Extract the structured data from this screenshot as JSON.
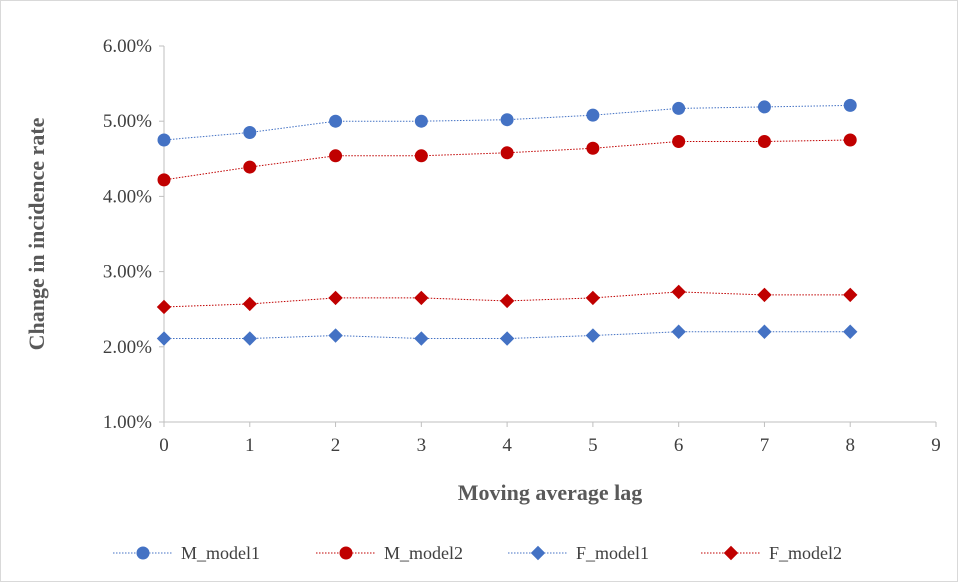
{
  "chart_data": {
    "type": "line",
    "xlabel": "Moving average lag",
    "ylabel": "Change in incidence rate",
    "xlim": [
      0,
      9
    ],
    "ylim": [
      1.0,
      6.0
    ],
    "x_ticks": [
      "0",
      "1",
      "2",
      "3",
      "4",
      "5",
      "6",
      "7",
      "8",
      "9"
    ],
    "y_ticks": [
      "1.00%",
      "2.00%",
      "3.00%",
      "4.00%",
      "5.00%",
      "6.00%"
    ],
    "y_unit": "%",
    "grid": false,
    "legend_position": "bottom",
    "x": [
      0,
      1,
      2,
      3,
      4,
      5,
      6,
      7,
      8
    ],
    "series": [
      {
        "name": "M_model1",
        "color": "#4472c4",
        "marker": "circle",
        "line_style": "dotted",
        "values": [
          4.75,
          4.85,
          5.0,
          5.0,
          5.02,
          5.08,
          5.17,
          5.19,
          5.21
        ]
      },
      {
        "name": "M_model2",
        "color": "#c00000",
        "marker": "circle",
        "line_style": "dotted",
        "values": [
          4.22,
          4.39,
          4.54,
          4.54,
          4.58,
          4.64,
          4.73,
          4.73,
          4.75
        ]
      },
      {
        "name": "F_model1",
        "color": "#4472c4",
        "marker": "diamond",
        "line_style": "dotted",
        "values": [
          2.11,
          2.11,
          2.15,
          2.11,
          2.11,
          2.15,
          2.2,
          2.2,
          2.2
        ]
      },
      {
        "name": "F_model2",
        "color": "#c00000",
        "marker": "diamond",
        "line_style": "dotted",
        "values": [
          2.53,
          2.57,
          2.65,
          2.65,
          2.61,
          2.65,
          2.73,
          2.69,
          2.69
        ]
      }
    ]
  }
}
